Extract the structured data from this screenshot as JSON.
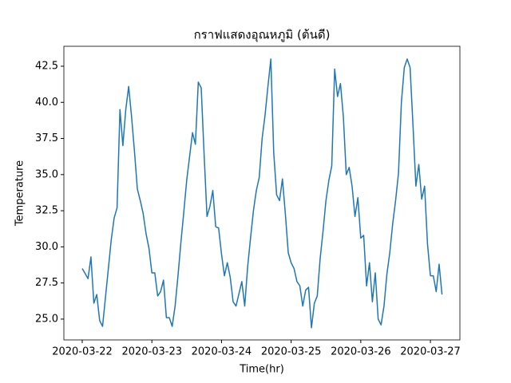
{
  "chart_data": {
    "type": "line",
    "title": "กราฟแสดงอุณหภูมิ (ต้นดี)",
    "xlabel": "Time(hr)",
    "ylabel": "Temperature",
    "x": [
      "2020-03-22 00:00",
      "2020-03-22 02:00",
      "2020-03-22 03:00",
      "2020-03-22 04:00",
      "2020-03-22 05:00",
      "2020-03-22 06:00",
      "2020-03-22 07:00",
      "2020-03-22 08:00",
      "2020-03-22 09:00",
      "2020-03-22 10:00",
      "2020-03-22 11:00",
      "2020-03-22 12:00",
      "2020-03-22 13:00",
      "2020-03-22 14:00",
      "2020-03-22 15:00",
      "2020-03-22 16:00",
      "2020-03-22 17:00",
      "2020-03-22 18:00",
      "2020-03-22 19:00",
      "2020-03-22 20:00",
      "2020-03-22 21:00",
      "2020-03-22 22:00",
      "2020-03-22 23:00",
      "2020-03-23 00:00",
      "2020-03-23 01:00",
      "2020-03-23 02:00",
      "2020-03-23 03:00",
      "2020-03-23 04:00",
      "2020-03-23 05:00",
      "2020-03-23 06:00",
      "2020-03-23 07:00",
      "2020-03-23 08:00",
      "2020-03-23 09:00",
      "2020-03-23 10:00",
      "2020-03-23 11:00",
      "2020-03-23 12:00",
      "2020-03-23 14:00",
      "2020-03-23 15:00",
      "2020-03-23 16:00",
      "2020-03-23 17:00",
      "2020-03-23 18:00",
      "2020-03-23 19:00",
      "2020-03-23 20:00",
      "2020-03-23 21:00",
      "2020-03-23 22:00",
      "2020-03-23 23:00",
      "2020-03-24 00:00",
      "2020-03-24 01:00",
      "2020-03-24 02:00",
      "2020-03-24 03:00",
      "2020-03-24 04:00",
      "2020-03-24 05:00",
      "2020-03-24 07:00",
      "2020-03-24 08:00",
      "2020-03-24 09:00",
      "2020-03-24 10:00",
      "2020-03-24 11:00",
      "2020-03-24 12:00",
      "2020-03-24 13:00",
      "2020-03-24 14:00",
      "2020-03-24 15:00",
      "2020-03-24 16:00",
      "2020-03-24 17:00",
      "2020-03-24 18:00",
      "2020-03-24 19:00",
      "2020-03-24 20:00",
      "2020-03-24 21:00",
      "2020-03-24 22:00",
      "2020-03-24 23:00",
      "2020-03-25 00:00",
      "2020-03-25 01:00",
      "2020-03-25 02:00",
      "2020-03-25 03:00",
      "2020-03-25 04:00",
      "2020-03-25 05:00",
      "2020-03-25 06:00",
      "2020-03-25 07:00",
      "2020-03-25 08:00",
      "2020-03-25 09:00",
      "2020-03-25 10:00",
      "2020-03-25 11:00",
      "2020-03-25 12:00",
      "2020-03-25 13:00",
      "2020-03-25 14:00",
      "2020-03-25 15:00",
      "2020-03-25 16:00",
      "2020-03-25 17:00",
      "2020-03-25 18:00",
      "2020-03-25 19:00",
      "2020-03-25 20:00",
      "2020-03-25 21:00",
      "2020-03-25 22:00",
      "2020-03-25 23:00",
      "2020-03-26 00:00",
      "2020-03-26 01:00",
      "2020-03-26 02:00",
      "2020-03-26 03:00",
      "2020-03-26 04:00",
      "2020-03-26 05:00",
      "2020-03-26 06:00",
      "2020-03-26 07:00",
      "2020-03-26 08:00",
      "2020-03-26 09:00",
      "2020-03-26 10:00",
      "2020-03-26 11:00",
      "2020-03-26 12:00",
      "2020-03-26 13:00",
      "2020-03-26 14:00",
      "2020-03-26 15:00",
      "2020-03-26 16:00",
      "2020-03-26 17:00",
      "2020-03-26 18:00",
      "2020-03-26 19:00",
      "2020-03-26 20:00",
      "2020-03-26 21:00",
      "2020-03-26 22:00",
      "2020-03-26 23:00",
      "2020-03-27 00:00",
      "2020-03-27 01:00",
      "2020-03-27 02:00",
      "2020-03-27 03:00",
      "2020-03-27 04:00"
    ],
    "series": [
      {
        "color": "#1f77b4",
        "values": [
          28.5,
          27.8,
          29.3,
          26.1,
          26.7,
          24.9,
          24.5,
          26.5,
          28.5,
          30.5,
          32.0,
          32.7,
          39.5,
          37.0,
          39.5,
          41.1,
          39.0,
          36.6,
          34.0,
          33.2,
          32.3,
          30.9,
          29.9,
          28.2,
          28.2,
          26.6,
          26.9,
          27.7,
          25.1,
          25.1,
          24.5,
          25.9,
          28.0,
          30.3,
          32.4,
          34.6,
          37.9,
          37.1,
          41.4,
          41.0,
          36.4,
          32.1,
          32.8,
          33.9,
          31.4,
          31.3,
          29.5,
          28.0,
          28.9,
          27.9,
          26.2,
          25.9,
          27.6,
          25.9,
          28.6,
          30.6,
          32.5,
          33.9,
          34.8,
          37.5,
          39.1,
          41.1,
          43.0,
          36.5,
          33.6,
          33.2,
          34.7,
          32.3,
          29.6,
          28.9,
          28.5,
          27.6,
          27.3,
          25.9,
          27.0,
          27.2,
          24.4,
          26.1,
          26.6,
          29.2,
          31.1,
          33.2,
          34.6,
          35.6,
          42.3,
          40.4,
          41.3,
          39.0,
          35.0,
          35.5,
          34.2,
          32.1,
          33.4,
          30.6,
          30.8,
          27.3,
          28.9,
          26.2,
          28.2,
          25.0,
          24.6,
          25.9,
          28.1,
          29.6,
          31.6,
          33.2,
          35.1,
          40.0,
          42.4,
          43.0,
          42.4,
          38.4,
          34.2,
          35.7,
          33.3,
          34.2,
          30.2,
          28.0,
          28.0,
          26.9,
          28.8,
          26.7
        ]
      }
    ],
    "xlim": [
      "2020-03-21 17:40",
      "2020-03-27 10:10"
    ],
    "xticks": [
      {
        "value": "2020-03-22 00:00",
        "label": "2020-03-22"
      },
      {
        "value": "2020-03-23 00:00",
        "label": "2020-03-23"
      },
      {
        "value": "2020-03-24 00:00",
        "label": "2020-03-24"
      },
      {
        "value": "2020-03-25 00:00",
        "label": "2020-03-25"
      },
      {
        "value": "2020-03-26 00:00",
        "label": "2020-03-26"
      },
      {
        "value": "2020-03-27 00:00",
        "label": "2020-03-27"
      }
    ],
    "ylim": [
      23.56,
      43.88
    ],
    "yticks": [
      {
        "value": 25,
        "label": "25.0"
      },
      27.5,
      {
        "value": 30,
        "label": "30.0"
      },
      32.5,
      {
        "value": 35,
        "label": "35.0"
      },
      37.5,
      {
        "value": 40,
        "label": "40.0"
      },
      42.5
    ],
    "grid": false
  }
}
